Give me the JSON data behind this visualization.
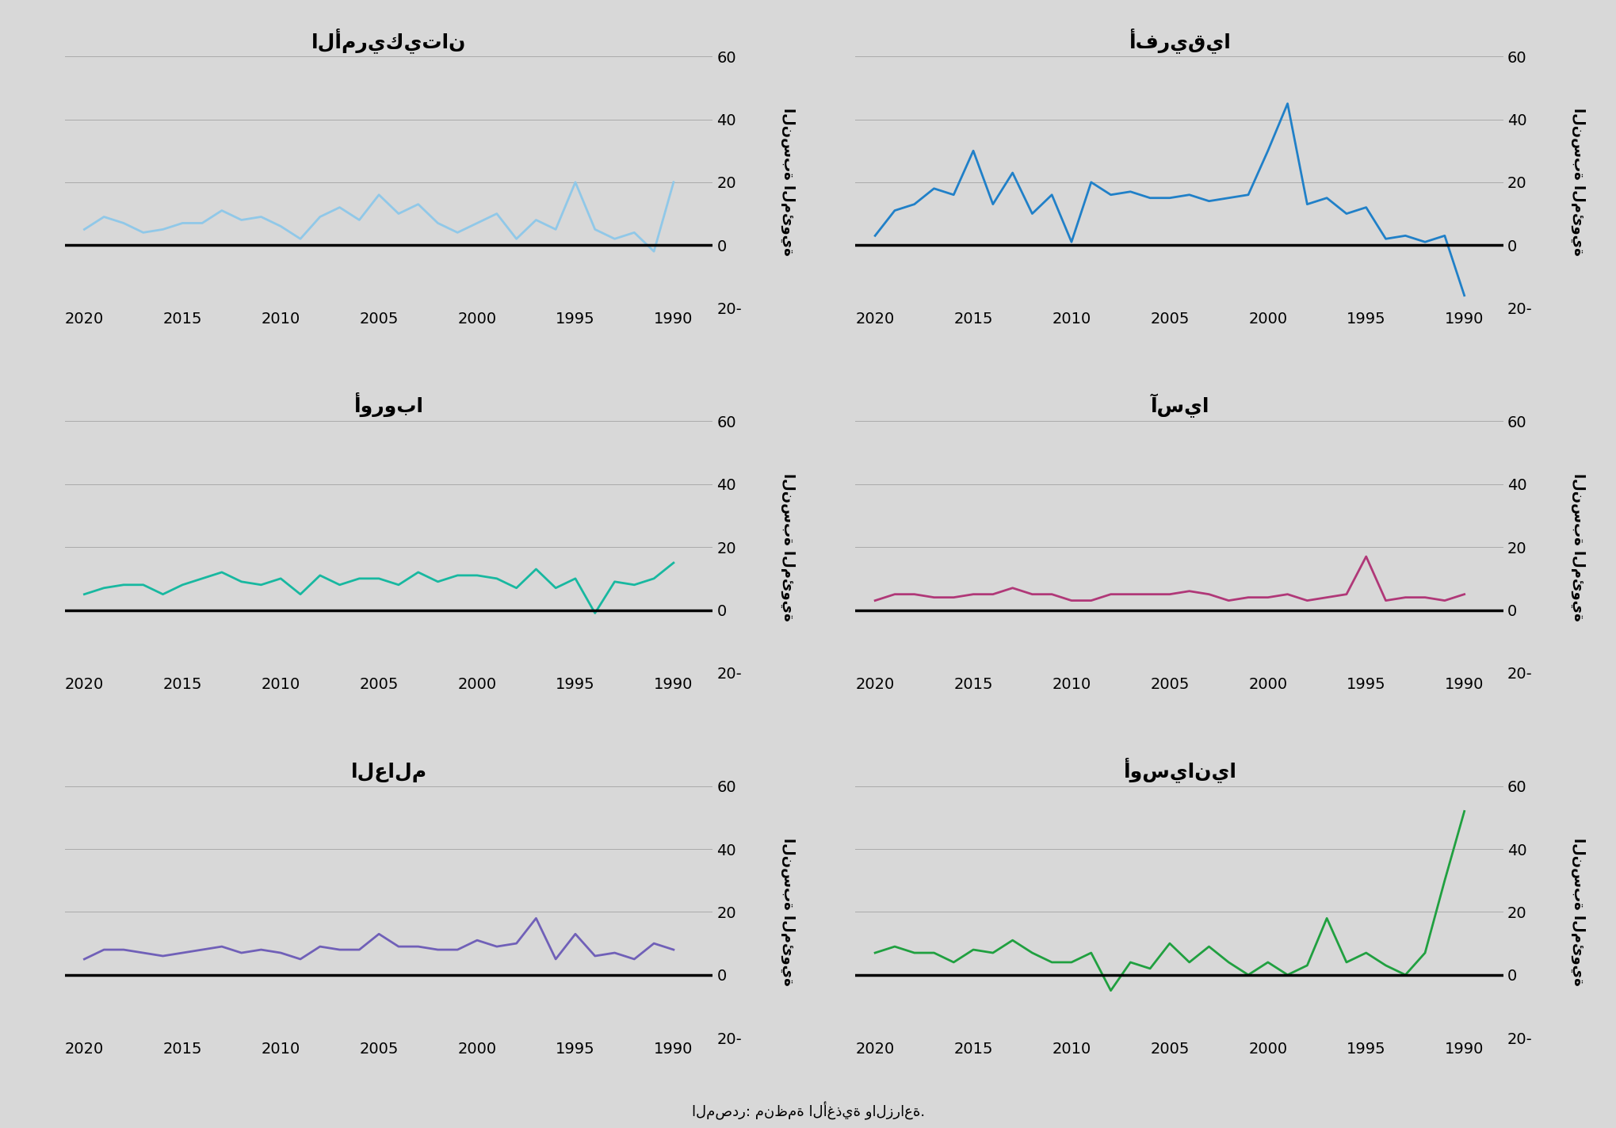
{
  "background_color": "#d8d8d8",
  "ylim": [
    -20,
    60
  ],
  "yticks": [
    -20,
    0,
    20,
    40,
    60
  ],
  "yticklabels": [
    "20-",
    "0",
    "20",
    "40",
    "60"
  ],
  "xticks": [
    2020,
    2015,
    2010,
    2005,
    2000,
    1995,
    1990
  ],
  "ylabel": "النسبة المئوية",
  "source_text": "المصدر: منظمة الأغذية والزراعة.",
  "layout": [
    [
      "الأمريكيتان",
      "أفريقيا"
    ],
    [
      "أوروبا",
      "آسيا"
    ],
    [
      "العالم",
      "أوسيانيا"
    ]
  ],
  "colors": {
    "أفريقيا": "#2080c8",
    "الأمريكيتان": "#90c8e8",
    "آسيا": "#b03878",
    "أوروبا": "#18b8a0",
    "أوسيانيا": "#20a040",
    "العالم": "#7060b8"
  },
  "series": {
    "أفريقيا": {
      "years": [
        1990,
        1991,
        1992,
        1993,
        1994,
        1995,
        1996,
        1997,
        1998,
        1999,
        2000,
        2001,
        2002,
        2003,
        2004,
        2005,
        2006,
        2007,
        2008,
        2009,
        2010,
        2011,
        2012,
        2013,
        2014,
        2015,
        2016,
        2017,
        2018,
        2019,
        2020
      ],
      "values": [
        -16,
        3,
        1,
        3,
        2,
        12,
        10,
        15,
        13,
        45,
        30,
        16,
        15,
        14,
        16,
        15,
        15,
        17,
        16,
        20,
        1,
        16,
        10,
        23,
        13,
        30,
        16,
        18,
        13,
        11,
        3
      ]
    },
    "الأمريكيتان": {
      "years": [
        1990,
        1991,
        1992,
        1993,
        1994,
        1995,
        1996,
        1997,
        1998,
        1999,
        2000,
        2001,
        2002,
        2003,
        2004,
        2005,
        2006,
        2007,
        2008,
        2009,
        2010,
        2011,
        2012,
        2013,
        2014,
        2015,
        2016,
        2017,
        2018,
        2019,
        2020
      ],
      "values": [
        20,
        -2,
        4,
        2,
        5,
        20,
        5,
        8,
        2,
        10,
        7,
        4,
        7,
        13,
        10,
        16,
        8,
        12,
        9,
        2,
        6,
        9,
        8,
        11,
        7,
        7,
        5,
        4,
        7,
        9,
        5
      ]
    },
    "آسيا": {
      "years": [
        1990,
        1991,
        1992,
        1993,
        1994,
        1995,
        1996,
        1997,
        1998,
        1999,
        2000,
        2001,
        2002,
        2003,
        2004,
        2005,
        2006,
        2007,
        2008,
        2009,
        2010,
        2011,
        2012,
        2013,
        2014,
        2015,
        2016,
        2017,
        2018,
        2019,
        2020
      ],
      "values": [
        5,
        3,
        4,
        4,
        3,
        17,
        5,
        4,
        3,
        5,
        4,
        4,
        3,
        5,
        6,
        5,
        5,
        5,
        5,
        3,
        3,
        5,
        5,
        7,
        5,
        5,
        4,
        4,
        5,
        5,
        3
      ]
    },
    "أوروبا": {
      "years": [
        1990,
        1991,
        1992,
        1993,
        1994,
        1995,
        1996,
        1997,
        1998,
        1999,
        2000,
        2001,
        2002,
        2003,
        2004,
        2005,
        2006,
        2007,
        2008,
        2009,
        2010,
        2011,
        2012,
        2013,
        2014,
        2015,
        2016,
        2017,
        2018,
        2019,
        2020
      ],
      "values": [
        15,
        10,
        8,
        9,
        -1,
        10,
        7,
        13,
        7,
        10,
        11,
        11,
        9,
        12,
        8,
        10,
        10,
        8,
        11,
        5,
        10,
        8,
        9,
        12,
        10,
        8,
        5,
        8,
        8,
        7,
        5
      ]
    },
    "أوسيانيا": {
      "years": [
        1990,
        1991,
        1992,
        1993,
        1994,
        1995,
        1996,
        1997,
        1998,
        1999,
        2000,
        2001,
        2002,
        2003,
        2004,
        2005,
        2006,
        2007,
        2008,
        2009,
        2010,
        2011,
        2012,
        2013,
        2014,
        2015,
        2016,
        2017,
        2018,
        2019,
        2020
      ],
      "values": [
        52,
        30,
        7,
        0,
        3,
        7,
        4,
        18,
        3,
        0,
        4,
        0,
        4,
        9,
        4,
        10,
        2,
        4,
        -5,
        7,
        4,
        4,
        7,
        11,
        7,
        8,
        4,
        7,
        7,
        9,
        7
      ]
    },
    "العالم": {
      "years": [
        1990,
        1991,
        1992,
        1993,
        1994,
        1995,
        1996,
        1997,
        1998,
        1999,
        2000,
        2001,
        2002,
        2003,
        2004,
        2005,
        2006,
        2007,
        2008,
        2009,
        2010,
        2011,
        2012,
        2013,
        2014,
        2015,
        2016,
        2017,
        2018,
        2019,
        2020
      ],
      "values": [
        8,
        10,
        5,
        7,
        6,
        13,
        5,
        18,
        10,
        9,
        11,
        8,
        8,
        9,
        9,
        13,
        8,
        8,
        9,
        5,
        7,
        8,
        7,
        9,
        8,
        7,
        6,
        7,
        8,
        8,
        5
      ]
    }
  },
  "title_fontsize": 18,
  "tick_fontsize": 14,
  "ylabel_fontsize": 13,
  "source_fontsize": 13,
  "linewidth": 2.0,
  "zero_linewidth": 2.5
}
